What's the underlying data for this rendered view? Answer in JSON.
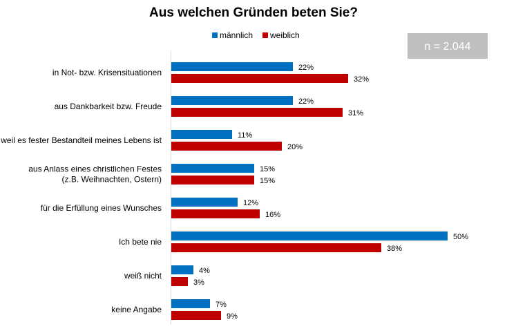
{
  "chart_data": {
    "type": "bar",
    "orientation": "horizontal",
    "title": "Aus welchen Gründen beten Sie?",
    "sample_note": "n = 2.044",
    "categories": [
      [
        "in Not- bzw. Krisensituationen"
      ],
      [
        "aus Dankbarkeit bzw. Freude"
      ],
      [
        "weil es fester Bestandteil meines Lebens ist"
      ],
      [
        "aus Anlass eines christlichen Festes",
        "(z.B. Weihnachten, Ostern)"
      ],
      [
        "für die Erfüllung eines Wunsches"
      ],
      [
        "Ich bete nie"
      ],
      [
        "weiß nicht"
      ],
      [
        "keine Angabe"
      ]
    ],
    "series": [
      {
        "name": "männlich",
        "color": "#0070C0",
        "values": [
          22,
          22,
          11,
          15,
          12,
          50,
          4,
          7
        ]
      },
      {
        "name": "weiblich",
        "color": "#C00000",
        "values": [
          32,
          31,
          20,
          15,
          16,
          38,
          3,
          9
        ]
      }
    ],
    "value_suffix": "%",
    "xlim": [
      0,
      50
    ],
    "grid": false,
    "legend_position": "top",
    "colors": {
      "note_box": "#BFBFBF",
      "axis": "#D9D9D9"
    }
  }
}
